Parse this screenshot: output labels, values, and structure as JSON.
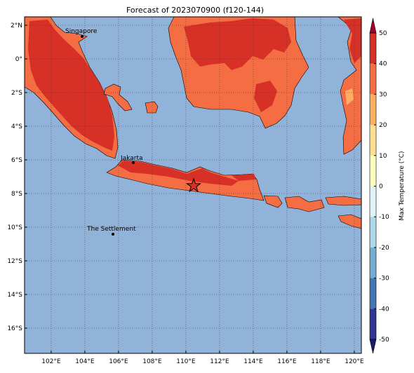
{
  "title": "Forecast of 2023070900 (f120-144)",
  "map": {
    "lon_range": [
      100.42,
      120.42
    ],
    "lat_range": [
      -17.5,
      2.5
    ],
    "ocean_color": "#92b3d9",
    "lon_ticks": [
      {
        "value": 102,
        "label": "102°E"
      },
      {
        "value": 104,
        "label": "104°E"
      },
      {
        "value": 106,
        "label": "106°E"
      },
      {
        "value": 108,
        "label": "108°E"
      },
      {
        "value": 110,
        "label": "110°E"
      },
      {
        "value": 112,
        "label": "112°E"
      },
      {
        "value": 114,
        "label": "114°E"
      },
      {
        "value": 116,
        "label": "116°E"
      },
      {
        "value": 118,
        "label": "118°E"
      },
      {
        "value": 120,
        "label": "120°E"
      }
    ],
    "lat_ticks": [
      {
        "value": 2,
        "label": "2°N"
      },
      {
        "value": 0,
        "label": "0°"
      },
      {
        "value": -2,
        "label": "2°S"
      },
      {
        "value": -4,
        "label": "4°S"
      },
      {
        "value": -6,
        "label": "6°S"
      },
      {
        "value": -8,
        "label": "8°S"
      },
      {
        "value": -10,
        "label": "10°S"
      },
      {
        "value": -12,
        "label": "12°S"
      },
      {
        "value": -14,
        "label": "14°S"
      },
      {
        "value": -16,
        "label": "16°S"
      }
    ],
    "cities": [
      "Singapore",
      "Jakarta",
      "The Settlement"
    ]
  },
  "colorbar": {
    "label": "Max Temperature (°C)",
    "lim": [
      -50,
      50
    ],
    "ticks": [
      -50,
      -40,
      -30,
      -20,
      -10,
      0,
      10,
      20,
      30,
      40,
      50
    ],
    "colors": [
      "#313695",
      "#4575b4",
      "#74add1",
      "#abd9e9",
      "#e0f3f8",
      "#ffffbf",
      "#fee090",
      "#fdae61",
      "#f46d43",
      "#d73027"
    ],
    "under_color": "#1a1a6e",
    "over_color": "#a50026"
  }
}
